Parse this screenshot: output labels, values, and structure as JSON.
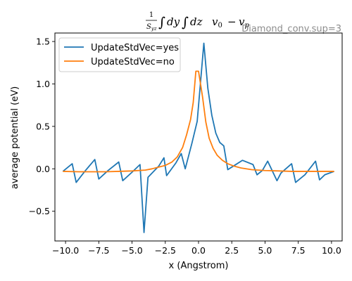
{
  "chart_data": {
    "type": "line",
    "title_parts": {
      "frac_num": "1",
      "frac_den": "S",
      "frac_den_sub": "yz",
      "integral_1": "∫",
      "d1": "dy",
      "integral_2": "∫",
      "d2": "dz",
      "v0": "v",
      "v0_sub": "0",
      "minus": "−",
      "vp": "v",
      "vp_sub": "p"
    },
    "annotation": "Diamond_conv.sup=3",
    "xlabel": "x (Angstrom)",
    "ylabel": "average potential (eV)",
    "xlim": [
      -10.8,
      10.8
    ],
    "ylim": [
      -0.85,
      1.6
    ],
    "xticks": [
      -10.0,
      -7.5,
      -5.0,
      -2.5,
      0.0,
      2.5,
      5.0,
      7.5,
      10.0
    ],
    "xtick_labels": [
      "−10.0",
      "−7.5",
      "−5.0",
      "−2.5",
      "0.0",
      "2.5",
      "5.0",
      "7.5",
      "10.0"
    ],
    "yticks": [
      -0.5,
      0.0,
      0.5,
      1.0,
      1.5
    ],
    "ytick_labels": [
      "−0.5",
      "0.0",
      "0.5",
      "1.0",
      "1.5"
    ],
    "grid": false,
    "legend_position": "top-left",
    "series": [
      {
        "name": "UpdateStdVec=yes",
        "color": "#1f77b4",
        "x": [
          -10.2,
          -9.5,
          -9.2,
          -8.5,
          -7.8,
          -7.5,
          -6.8,
          -6.0,
          -5.7,
          -5.0,
          -4.4,
          -4.1,
          -3.8,
          -3.0,
          -2.6,
          -2.4,
          -1.7,
          -1.3,
          -1.0,
          -0.5,
          -0.1,
          0.4,
          0.7,
          1.0,
          1.3,
          1.6,
          1.9,
          2.2,
          2.6,
          3.3,
          4.1,
          4.4,
          4.8,
          5.2,
          5.9,
          6.2,
          7.0,
          7.3,
          8.0,
          8.8,
          9.1,
          9.5,
          10.2
        ],
        "y": [
          -0.03,
          0.06,
          -0.16,
          -0.02,
          0.11,
          -0.12,
          -0.02,
          0.08,
          -0.14,
          -0.04,
          0.05,
          -0.75,
          -0.1,
          0.03,
          0.13,
          -0.08,
          0.07,
          0.18,
          0.0,
          0.3,
          0.56,
          1.48,
          0.95,
          0.63,
          0.42,
          0.31,
          0.27,
          -0.01,
          0.03,
          0.1,
          0.05,
          -0.07,
          -0.02,
          0.09,
          -0.14,
          -0.05,
          0.06,
          -0.16,
          -0.07,
          0.09,
          -0.13,
          -0.07,
          -0.03
        ]
      },
      {
        "name": "UpdateStdVec=no",
        "color": "#ff7f0e",
        "x": [
          -10.2,
          -9.0,
          -8.0,
          -7.0,
          -6.0,
          -5.0,
          -4.0,
          -3.5,
          -3.0,
          -2.5,
          -2.0,
          -1.6,
          -1.2,
          -0.9,
          -0.6,
          -0.4,
          -0.2,
          0.0,
          0.3,
          0.55,
          0.8,
          1.1,
          1.4,
          1.8,
          2.2,
          2.7,
          3.2,
          4.0,
          5.0,
          6.0,
          7.0,
          8.0,
          9.0,
          10.2
        ],
        "y": [
          -0.03,
          -0.035,
          -0.035,
          -0.035,
          -0.03,
          -0.025,
          -0.015,
          0.0,
          0.02,
          0.04,
          0.08,
          0.14,
          0.25,
          0.4,
          0.58,
          0.78,
          1.15,
          1.15,
          0.85,
          0.55,
          0.36,
          0.24,
          0.16,
          0.1,
          0.06,
          0.03,
          0.01,
          -0.01,
          -0.02,
          -0.025,
          -0.03,
          -0.03,
          -0.03,
          -0.03
        ]
      }
    ]
  }
}
